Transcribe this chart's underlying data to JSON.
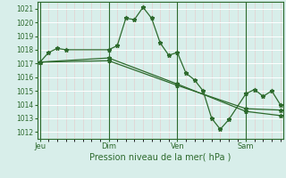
{
  "bg_color": "#d8eeea",
  "plot_bg_color": "#d8eeea",
  "grid_major_color": "#ffffff",
  "grid_minor_color": "#e8c8c8",
  "line_color": "#2d6a2d",
  "spine_color": "#2d6a2d",
  "ylabel_ticks": [
    1012,
    1013,
    1014,
    1015,
    1016,
    1017,
    1018,
    1019,
    1020,
    1021
  ],
  "ylim": [
    1011.5,
    1021.5
  ],
  "xlabel": "Pression niveau de la mer( hPa )",
  "day_labels": [
    "Jeu",
    "Dim",
    "Ven",
    "Sam"
  ],
  "day_positions": [
    0,
    48,
    96,
    144
  ],
  "xlim": [
    -2,
    170
  ],
  "series1": [
    [
      0,
      1017.1
    ],
    [
      6,
      1017.8
    ],
    [
      12,
      1018.1
    ],
    [
      18,
      1018.0
    ],
    [
      48,
      1018.0
    ],
    [
      54,
      1018.3
    ],
    [
      60,
      1020.3
    ],
    [
      66,
      1020.2
    ],
    [
      72,
      1021.1
    ],
    [
      78,
      1020.3
    ],
    [
      84,
      1018.5
    ],
    [
      90,
      1017.6
    ],
    [
      96,
      1017.8
    ],
    [
      102,
      1016.3
    ],
    [
      108,
      1015.8
    ],
    [
      114,
      1015.0
    ],
    [
      120,
      1013.0
    ],
    [
      126,
      1012.2
    ],
    [
      132,
      1012.9
    ],
    [
      144,
      1014.8
    ],
    [
      150,
      1015.1
    ],
    [
      156,
      1014.6
    ],
    [
      162,
      1015.0
    ],
    [
      168,
      1014.0
    ]
  ],
  "series2": [
    [
      0,
      1017.1
    ],
    [
      48,
      1017.4
    ],
    [
      96,
      1015.5
    ],
    [
      144,
      1013.5
    ],
    [
      168,
      1013.2
    ]
  ],
  "series3": [
    [
      0,
      1017.1
    ],
    [
      48,
      1017.2
    ],
    [
      96,
      1015.4
    ],
    [
      144,
      1013.7
    ],
    [
      168,
      1013.6
    ]
  ],
  "marker_size": 2.5,
  "line_width": 0.9,
  "ytick_fontsize": 5.5,
  "xtick_fontsize": 6.0,
  "xlabel_fontsize": 7.0
}
